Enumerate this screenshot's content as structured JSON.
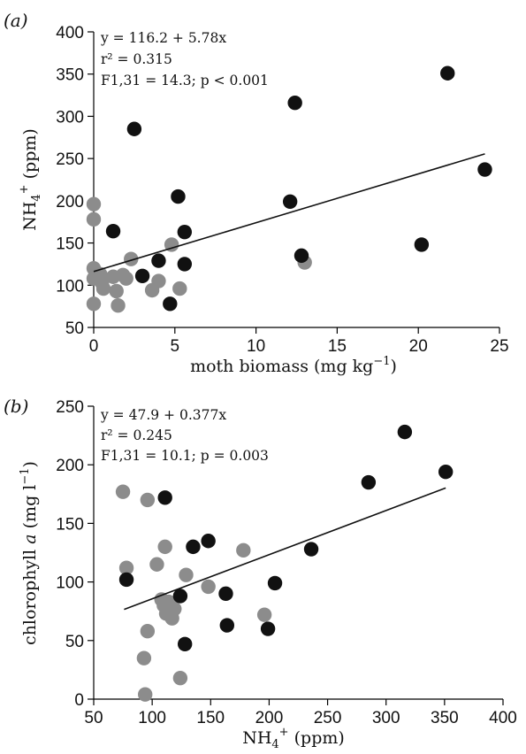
{
  "chart_data": [
    {
      "type": "scatter",
      "panel_label": "(a)",
      "xlabel_text": "moth biomass (mg kg",
      "xlabel_sup": "−1",
      "xlabel_close": ")",
      "ylabel_text": "NH",
      "ylabel_sub": "4",
      "ylabel_sup": "+",
      "ylabel_rest": " (ppm)",
      "xlim": [
        0,
        25
      ],
      "ylim": [
        50,
        400
      ],
      "xticks": [
        0,
        5,
        10,
        15,
        20,
        25
      ],
      "yticks": [
        50,
        100,
        150,
        200,
        250,
        300,
        350,
        400
      ],
      "annotations": {
        "line1": "y = 116.2 + 5.78x",
        "line2": "r² = 0.315",
        "line3": "F1,31 = 14.3; p < 0.001"
      },
      "fit": {
        "intercept": 116.2,
        "slope": 5.78,
        "x_range": [
          0,
          24.1
        ]
      },
      "series": [
        {
          "color": "#8c8c8c",
          "points": [
            [
              0,
              196
            ],
            [
              0,
              178
            ],
            [
              0,
              120
            ],
            [
              0,
              108
            ],
            [
              0,
              78
            ],
            [
              0.4,
              113
            ],
            [
              0.5,
              103
            ],
            [
              0.6,
              96
            ],
            [
              1.2,
              110
            ],
            [
              1.4,
              93
            ],
            [
              1.5,
              76
            ],
            [
              1.8,
              112
            ],
            [
              2.0,
              108
            ],
            [
              2.3,
              131
            ],
            [
              3.6,
              94
            ],
            [
              4.0,
              105
            ],
            [
              4.8,
              148
            ],
            [
              5.3,
              96
            ],
            [
              13.0,
              127
            ]
          ]
        },
        {
          "color": "#111111",
          "points": [
            [
              1.2,
              164
            ],
            [
              2.5,
              285
            ],
            [
              3.0,
              111
            ],
            [
              4.0,
              129
            ],
            [
              4.7,
              78
            ],
            [
              5.2,
              205
            ],
            [
              5.6,
              163
            ],
            [
              5.6,
              125
            ],
            [
              12.1,
              199
            ],
            [
              12.4,
              316
            ],
            [
              12.8,
              135
            ],
            [
              20.2,
              148
            ],
            [
              21.8,
              351
            ],
            [
              24.1,
              237
            ]
          ]
        }
      ]
    },
    {
      "type": "scatter",
      "panel_label": "(b)",
      "xlabel_text": "NH",
      "xlabel_sub": "4",
      "xlabel_sup": "+",
      "xlabel_rest": " (ppm)",
      "ylabel_text": "chlorophyll ",
      "ylabel_italic": "a",
      "ylabel_rest": " (mg l",
      "ylabel_sup": "−1",
      "ylabel_close": ")",
      "xlim": [
        50,
        400
      ],
      "ylim": [
        0,
        250
      ],
      "xticks": [
        50,
        100,
        150,
        200,
        250,
        300,
        350,
        400
      ],
      "yticks": [
        0,
        50,
        100,
        150,
        200,
        250
      ],
      "annotations": {
        "line1": "y = 47.9 + 0.377x",
        "line2": "r² = 0.245",
        "line3": "F1,31 = 10.1; p = 0.003"
      },
      "fit": {
        "intercept": 47.9,
        "slope": 0.377,
        "x_range": [
          76,
          351
        ]
      },
      "series": [
        {
          "color": "#8c8c8c",
          "points": [
            [
              75,
              177
            ],
            [
              78,
              112
            ],
            [
              93,
              35
            ],
            [
              94,
              4
            ],
            [
              96,
              58
            ],
            [
              96,
              170
            ],
            [
              104,
              115
            ],
            [
              108,
              85
            ],
            [
              110,
              80
            ],
            [
              111,
              130
            ],
            [
              112,
              73
            ],
            [
              114,
              83
            ],
            [
              117,
              69
            ],
            [
              119,
              77
            ],
            [
              124,
              18
            ],
            [
              129,
              106
            ],
            [
              148,
              96
            ],
            [
              178,
              127
            ],
            [
              196,
              72
            ]
          ]
        },
        {
          "color": "#111111",
          "points": [
            [
              78,
              102
            ],
            [
              111,
              172
            ],
            [
              124,
              88
            ],
            [
              128,
              47
            ],
            [
              135,
              130
            ],
            [
              148,
              135
            ],
            [
              163,
              90
            ],
            [
              164,
              63
            ],
            [
              199,
              60
            ],
            [
              205,
              99
            ],
            [
              236,
              128
            ],
            [
              285,
              185
            ],
            [
              316,
              228
            ],
            [
              351,
              194
            ]
          ]
        }
      ]
    }
  ]
}
